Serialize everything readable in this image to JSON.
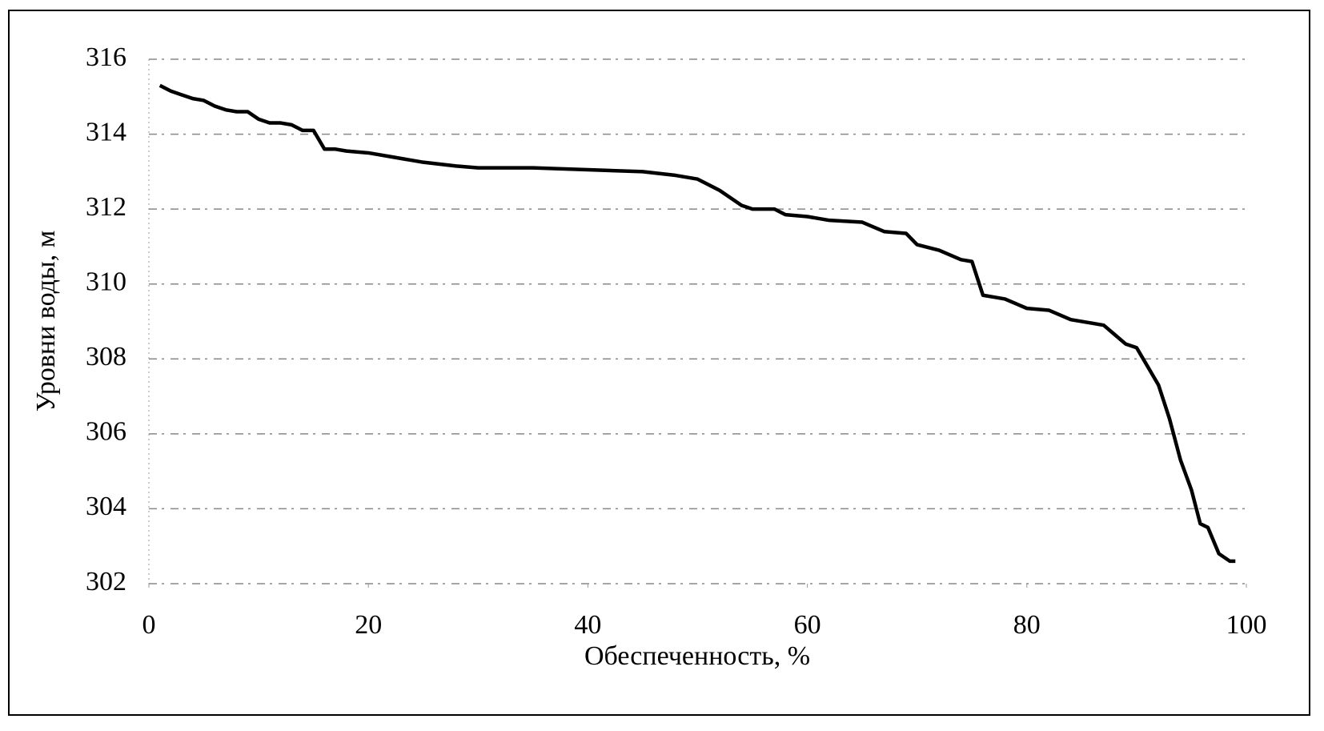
{
  "chart_data": {
    "type": "line",
    "xlabel": "Обеспеченность, %",
    "ylabel": "Уровни воды, м",
    "x": [
      1,
      2,
      3,
      4,
      5,
      6,
      7,
      8,
      9,
      10,
      11,
      12,
      13,
      14,
      15,
      16,
      17,
      18,
      20,
      22,
      25,
      28,
      30,
      35,
      40,
      45,
      48,
      50,
      52,
      54,
      55,
      57,
      58,
      60,
      62,
      65,
      67,
      69,
      70,
      72,
      74,
      75,
      76,
      77,
      78,
      80,
      82,
      84,
      86,
      87,
      88,
      89,
      90,
      91,
      92,
      93,
      94,
      95,
      95.8,
      96.5,
      97.5,
      98.5,
      99
    ],
    "series": [
      {
        "color": "#000000",
        "values": [
          315.3,
          315.15,
          315.05,
          314.95,
          314.9,
          314.75,
          314.65,
          314.6,
          314.6,
          314.4,
          314.3,
          314.3,
          314.25,
          314.1,
          314.1,
          313.6,
          313.6,
          313.55,
          313.5,
          313.4,
          313.25,
          313.15,
          313.1,
          313.1,
          313.05,
          313.0,
          312.9,
          312.8,
          312.5,
          312.1,
          312.0,
          312.0,
          311.85,
          311.8,
          311.7,
          311.65,
          311.4,
          311.35,
          311.05,
          310.9,
          310.65,
          310.6,
          309.7,
          309.65,
          309.6,
          309.35,
          309.3,
          309.05,
          308.95,
          308.9,
          308.65,
          308.4,
          308.3,
          307.8,
          307.3,
          306.4,
          305.3,
          304.5,
          303.6,
          303.5,
          302.8,
          302.6,
          302.6
        ]
      }
    ],
    "xlim": [
      0,
      100
    ],
    "xticks": [
      0,
      20,
      40,
      60,
      80,
      100
    ],
    "ylim": [
      302,
      316
    ],
    "yticks": [
      302,
      304,
      306,
      308,
      310,
      312,
      314,
      316
    ],
    "grid": true
  }
}
